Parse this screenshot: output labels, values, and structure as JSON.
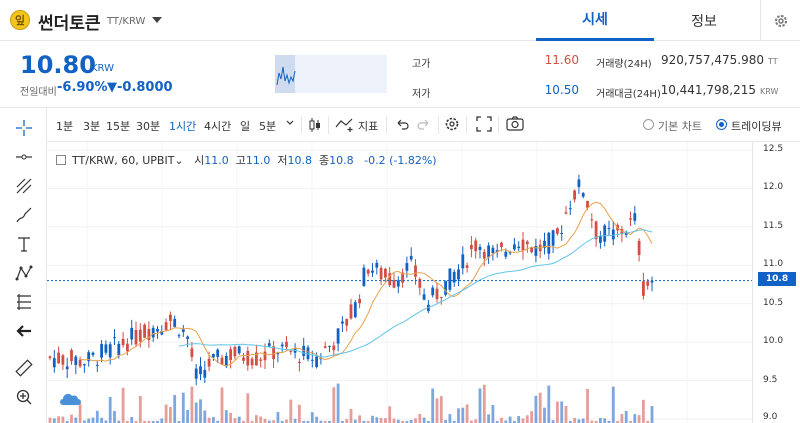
{
  "header": {
    "coin_name": "썬더토큰",
    "pair": "TT/KRW",
    "logo_glyph": "잎",
    "tabs": [
      {
        "label": "시세"
      },
      {
        "label": "정보"
      }
    ]
  },
  "summary": {
    "price": "10.80",
    "unit": "KRW",
    "change_label": "전일대비",
    "change_pct": "-6.90%",
    "change_abs": "▼-0.8000",
    "high_label": "고가",
    "high_value": "11.60",
    "low_label": "저가",
    "low_value": "10.50",
    "volume_label": "거래량(24H)",
    "volume_value": "920,757,475.980",
    "volume_unit": "TT",
    "amount_label": "거래대금(24H)",
    "amount_value": "10,441,798,215",
    "amount_unit": "KRW"
  },
  "toolbar": {
    "intervals": [
      {
        "label": "1분"
      },
      {
        "label": "3분"
      },
      {
        "label": "15분"
      },
      {
        "label": "30분"
      },
      {
        "label": "1시간"
      },
      {
        "label": "4시간"
      },
      {
        "label": "일"
      },
      {
        "label": "5분"
      }
    ],
    "indicator_label": "지표",
    "basic_chart_label": "기본 차트",
    "tradingview_label": "트레이딩뷰"
  },
  "legend": {
    "symbol": "TT/KRW, 60, UPBIT",
    "o_label": "시",
    "o_value": "11.0",
    "h_label": "고",
    "h_value": "11.0",
    "l_label": "저",
    "l_value": "10.8",
    "c_label": "종",
    "c_value": "10.8",
    "change": "-0.2 (-1.82%)"
  },
  "colors": {
    "up": "#d24f45",
    "down": "#1261c4",
    "ma1": "#e8a24a",
    "ma2": "#62c4e8"
  },
  "chart_data": {
    "type": "candlestick",
    "y_ticks": [
      "12.5",
      "12.0",
      "11.5",
      "11.0",
      "10.8",
      "10.5",
      "10.0",
      "9.5",
      "9.0"
    ],
    "ylim": [
      9.0,
      12.5
    ],
    "current_price": "10.8",
    "grid": true
  }
}
